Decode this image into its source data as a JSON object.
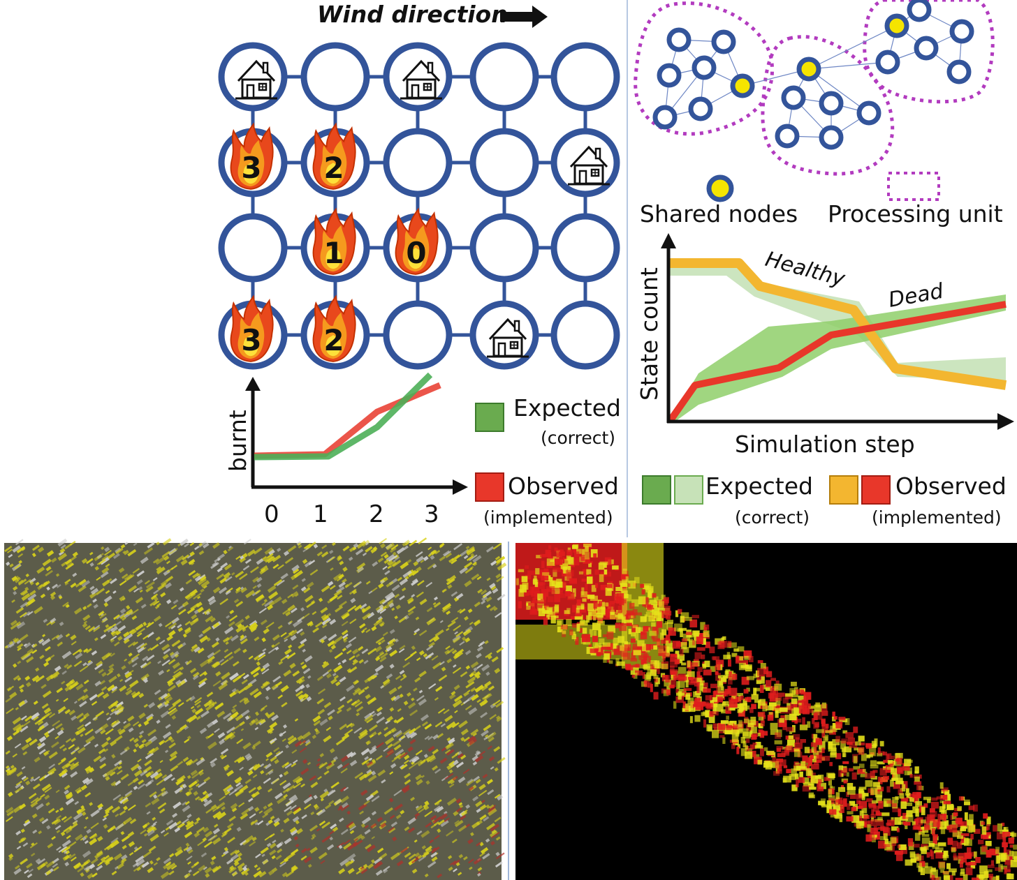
{
  "grid": {
    "wind_label": "Wind direction",
    "cells": [
      [
        "house",
        "",
        "house",
        "",
        ""
      ],
      [
        "3",
        "2",
        "",
        "",
        "house"
      ],
      [
        "",
        "1",
        "0",
        "",
        ""
      ],
      [
        "3",
        "2",
        "",
        "house",
        ""
      ]
    ],
    "colors": {
      "node": "#33549a",
      "link": "#33549a"
    }
  },
  "burnt_chart": {
    "ylabel": "burnt",
    "xticks": [
      "0",
      "1",
      "2",
      "3"
    ]
  },
  "legend_left": {
    "expected": {
      "label": "Expected",
      "sub": "(correct)",
      "color": "#6aab4f"
    },
    "observed": {
      "label": "Observed",
      "sub": "(implemented)",
      "color": "#e8372a"
    }
  },
  "network": {
    "shared_label": "Shared nodes",
    "unit_label": "Processing unit",
    "colors": {
      "node": "#33549a",
      "shared": "#f5e400",
      "unit": "#b23bbf"
    }
  },
  "state_chart": {
    "ylabel": "State count",
    "xlabel": "Simulation step",
    "healthy_label": "Healthy",
    "dead_label": "Dead"
  },
  "legend_right": {
    "expected": {
      "label": "Expected",
      "sub": "(correct)",
      "colors": [
        "#6aab4f",
        "#c7e2b8"
      ]
    },
    "observed": {
      "label": "Observed",
      "sub": "(implemented)",
      "colors": [
        "#f3b630",
        "#e8372a"
      ]
    }
  },
  "heatmaps": {
    "left": {
      "colors": [
        "#5c5c4a",
        "#d9d21a",
        "#cfcfcf"
      ]
    },
    "right": {
      "colors": [
        "#000000",
        "#e01d1d",
        "#e6e21a"
      ]
    }
  }
}
